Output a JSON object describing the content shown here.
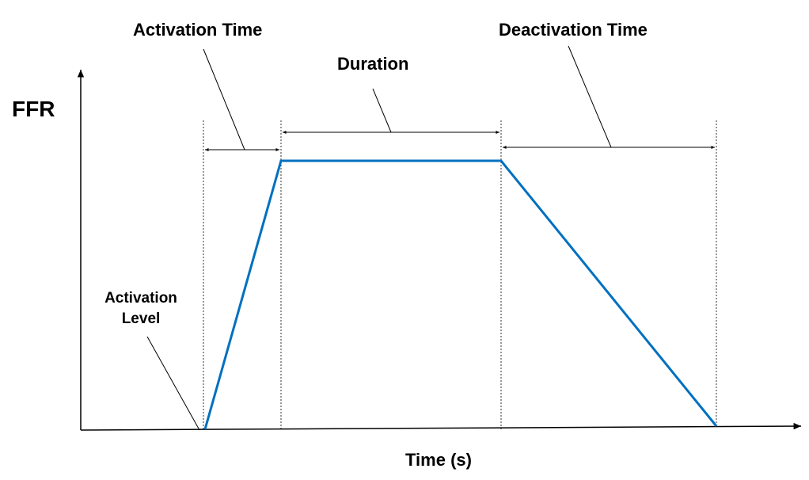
{
  "labels": {
    "activation_time": "Activation Time",
    "duration": "Duration",
    "deactivation_time": "Deactivation Time",
    "y_axis": "FFR",
    "x_axis": "Time (s)",
    "activation_level_line1": "Activation",
    "activation_level_line2": "Level"
  },
  "colors": {
    "curve": "#0070C0",
    "axes": "#000000",
    "guides": "#000000"
  },
  "icons": {
    "dimension_arrow": "double-headed-arrow-icon"
  }
}
